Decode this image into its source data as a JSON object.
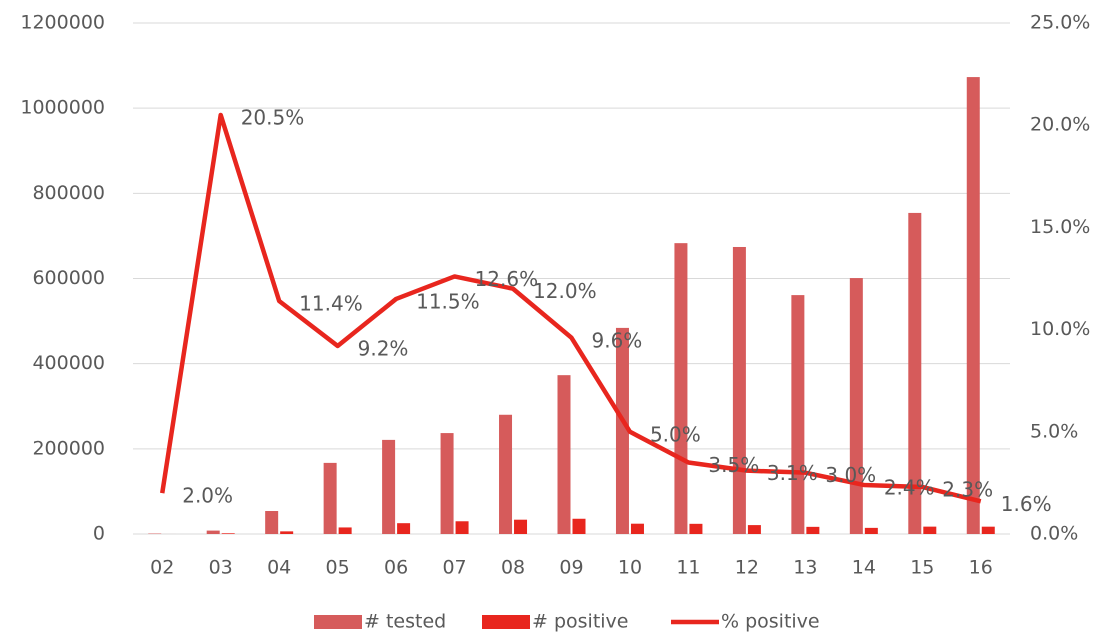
{
  "chart_data": {
    "type": "bar_line",
    "categories": [
      "02",
      "03",
      "04",
      "05",
      "06",
      "07",
      "08",
      "09",
      "10",
      "11",
      "12",
      "13",
      "14",
      "15",
      "16"
    ],
    "series": [
      {
        "name": "# tested",
        "color": "#d65b5b",
        "type": "bar",
        "values": [
          1000,
          8000,
          54000,
          167000,
          221000,
          237000,
          280000,
          373000,
          484000,
          683000,
          674000,
          561000,
          601000,
          754000,
          1073000
        ]
      },
      {
        "name": "# positive",
        "color": "#e8261e",
        "type": "bar",
        "values": [
          20,
          1640,
          6200,
          15400,
          25400,
          29900,
          33600,
          35800,
          24200,
          23900,
          20900,
          16800,
          14400,
          17300,
          17200
        ]
      },
      {
        "name": "% positive",
        "color": "#e8261e",
        "type": "line",
        "axis": "y2",
        "values": [
          2.0,
          20.5,
          11.4,
          9.2,
          11.5,
          12.6,
          12.0,
          9.6,
          5.0,
          3.5,
          3.1,
          3.0,
          2.4,
          2.3,
          1.6
        ],
        "value_labels": [
          "2.0%",
          "20.5%",
          "11.4%",
          "9.2%",
          "11.5%",
          "12.6%",
          "12.0%",
          "9.6%",
          "5.0%",
          "3.5%",
          "3.1%",
          "3.0%",
          "2.4%",
          "2.3%",
          "1.6%"
        ]
      }
    ],
    "ylim": [
      0,
      1200000
    ],
    "yticks": [
      0,
      200000,
      400000,
      600000,
      800000,
      1000000,
      1200000
    ],
    "y2lim": [
      0,
      25
    ],
    "y2ticks": [
      {
        "value": 0,
        "label": "0.0%"
      },
      {
        "value": 5,
        "label": "5.0%"
      },
      {
        "value": 10,
        "label": "10.0%"
      },
      {
        "value": 15,
        "label": "15.0%"
      },
      {
        "value": 20,
        "label": "20.0%"
      },
      {
        "value": 25,
        "label": "25.0%"
      }
    ],
    "grid": true,
    "legend": "bottom"
  }
}
